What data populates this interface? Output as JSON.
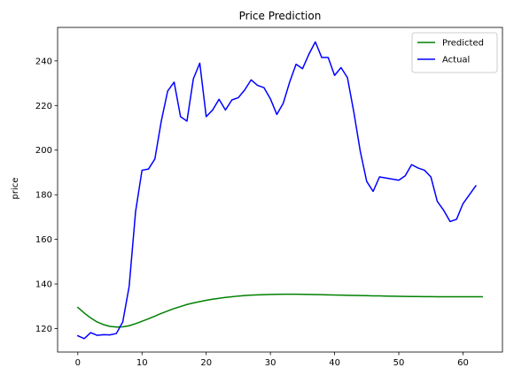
{
  "chart_data": {
    "type": "line",
    "title": "Price Prediction",
    "xlabel": "",
    "ylabel": "price",
    "xlim": [
      -3.15,
      66.15
    ],
    "ylim": [
      109.5,
      255
    ],
    "xticks": [
      0,
      10,
      20,
      30,
      40,
      50,
      60
    ],
    "yticks": [
      120,
      140,
      160,
      180,
      200,
      220,
      240
    ],
    "grid": false,
    "legend_position": "top-right",
    "series": [
      {
        "name": "Predicted",
        "color": "#008000",
        "x": [
          0,
          1,
          2,
          3,
          4,
          5,
          6,
          7,
          8,
          9,
          10,
          11,
          12,
          13,
          14,
          15,
          16,
          17,
          18,
          19,
          20,
          21,
          22,
          23,
          24,
          25,
          26,
          27,
          28,
          29,
          30,
          31,
          32,
          33,
          34,
          35,
          36,
          37,
          38,
          39,
          40,
          41,
          42,
          43,
          44,
          45,
          46,
          47,
          48,
          49,
          50,
          51,
          52,
          53,
          54,
          55,
          56,
          57,
          58,
          59,
          60,
          61,
          62,
          63
        ],
        "y": [
          129.5,
          127.0,
          124.8,
          123.0,
          121.8,
          121.0,
          120.7,
          120.8,
          121.3,
          122.2,
          123.3,
          124.4,
          125.6,
          126.8,
          127.9,
          129.0,
          129.9,
          130.8,
          131.5,
          132.1,
          132.7,
          133.2,
          133.6,
          134.0,
          134.3,
          134.6,
          134.8,
          135.0,
          135.1,
          135.2,
          135.3,
          135.35,
          135.4,
          135.4,
          135.4,
          135.35,
          135.3,
          135.25,
          135.2,
          135.1,
          135.05,
          135.0,
          134.9,
          134.85,
          134.8,
          134.75,
          134.7,
          134.65,
          134.6,
          134.55,
          134.5,
          134.45,
          134.4,
          134.4,
          134.35,
          134.35,
          134.3,
          134.3,
          134.3,
          134.3,
          134.3,
          134.3,
          134.3,
          134.3
        ]
      },
      {
        "name": "Actual",
        "color": "#0000ff",
        "x": [
          0,
          1,
          2,
          3,
          4,
          5,
          6,
          7,
          8,
          9,
          10,
          11,
          12,
          13,
          14,
          15,
          16,
          17,
          18,
          19,
          20,
          21,
          22,
          23,
          24,
          25,
          26,
          27,
          28,
          29,
          30,
          31,
          32,
          33,
          34,
          35,
          36,
          37,
          38,
          39,
          40,
          41,
          42,
          43,
          44,
          45,
          46,
          47,
          48,
          49,
          50,
          51,
          52,
          53,
          54,
          55,
          56,
          57,
          58,
          59,
          60,
          61,
          62
        ],
        "y": [
          116.8,
          115.5,
          118.2,
          117.0,
          117.3,
          117.2,
          117.8,
          123.0,
          139.0,
          172.5,
          191.0,
          191.5,
          196.0,
          213.0,
          226.5,
          230.5,
          215.0,
          213.0,
          232.0,
          239.0,
          215.0,
          218.0,
          222.8,
          218.0,
          222.5,
          223.5,
          227.0,
          231.5,
          229.0,
          228.0,
          223.0,
          216.0,
          221.0,
          230.5,
          238.5,
          236.5,
          243.0,
          248.5,
          241.5,
          241.5,
          233.5,
          237.0,
          232.5,
          217.0,
          199.5,
          186.0,
          181.5,
          188.0,
          187.5,
          187.0,
          186.5,
          188.5,
          193.5,
          192.0,
          191.0,
          188.0,
          177.0,
          173.0,
          168.0,
          169.0,
          176.0,
          180.0,
          184.0
        ]
      }
    ]
  }
}
